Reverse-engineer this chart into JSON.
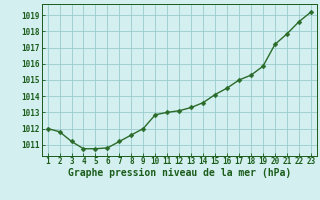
{
  "x": [
    1,
    2,
    3,
    4,
    5,
    6,
    7,
    8,
    9,
    10,
    11,
    12,
    13,
    14,
    15,
    16,
    17,
    18,
    19,
    20,
    21,
    22,
    23
  ],
  "y": [
    1012.0,
    1011.8,
    1011.2,
    1010.75,
    1010.75,
    1010.8,
    1011.2,
    1011.6,
    1012.0,
    1012.85,
    1013.0,
    1013.1,
    1013.3,
    1013.6,
    1014.1,
    1014.5,
    1015.0,
    1015.3,
    1015.85,
    1017.2,
    1017.85,
    1018.6,
    1019.2
  ],
  "line_color": "#2a6b2a",
  "marker": "D",
  "marker_size": 2.5,
  "linewidth": 1.0,
  "bg_color": "#d4efef",
  "grid_color": "#99cccc",
  "xlabel": "Graphe pression niveau de la mer (hPa)",
  "xlabel_color": "#1a5c1a",
  "xlabel_fontsize": 7.0,
  "tick_color": "#1a5c1a",
  "tick_fontsize": 5.5,
  "ytick_labels": [
    1011,
    1012,
    1013,
    1014,
    1015,
    1016,
    1017,
    1018,
    1019
  ],
  "ylim": [
    1010.3,
    1019.7
  ],
  "xlim": [
    0.5,
    23.5
  ]
}
